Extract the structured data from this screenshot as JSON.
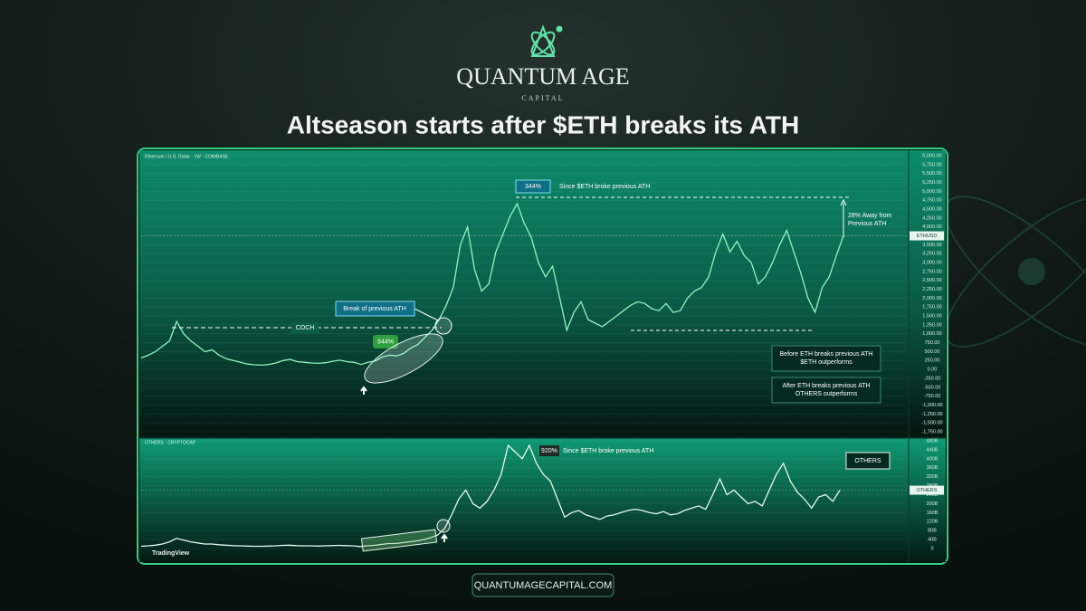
{
  "header": {
    "brand": "QUANTUM AGE",
    "brand_sub": "CAPITAL",
    "title": "Altseason starts after $ETH breaks its ATH"
  },
  "chart_data": [
    {
      "type": "line",
      "title": "Ethereum / U.S. Dollar · 1W · COINBASE",
      "series": [
        {
          "name": "ETHUSD",
          "color": "#8ff5bf",
          "values": [
            320,
            400,
            500,
            650,
            800,
            1350,
            1000,
            800,
            650,
            500,
            550,
            400,
            300,
            250,
            200,
            150,
            130,
            120,
            140,
            180,
            250,
            280,
            220,
            200,
            180,
            170,
            190,
            230,
            260,
            220,
            200,
            140,
            200,
            240,
            350,
            400,
            380,
            450,
            600,
            700,
            900,
            1100,
            1400,
            1800,
            2300,
            3500,
            4000,
            2800,
            2200,
            2400,
            3300,
            3800,
            4300,
            4650,
            4100,
            3700,
            3000,
            2600,
            2900,
            2000,
            1100,
            1600,
            1900,
            1400,
            1300,
            1200,
            1350,
            1500,
            1650,
            1800,
            1900,
            1850,
            1700,
            1650,
            1850,
            1600,
            1650,
            2000,
            2200,
            2300,
            2600,
            3300,
            3800,
            3300,
            3600,
            3200,
            3000,
            2400,
            2600,
            3000,
            3500,
            3900,
            3300,
            2700,
            2000,
            1600,
            2300,
            2600,
            3200,
            3750
          ]
        }
      ],
      "ylim": [
        -1750,
        6000
      ],
      "yticks": [
        {
          "value": -1750,
          "label": "-1,750.00"
        },
        {
          "value": -1500,
          "label": "-1,500.00"
        },
        {
          "value": -1250,
          "label": "-1,250.00"
        },
        {
          "value": -1000,
          "label": "-1,000.00"
        },
        {
          "value": -750,
          "label": "-750.00"
        },
        {
          "value": -500,
          "label": "-500.00"
        },
        {
          "value": -250,
          "label": "-250.00"
        },
        {
          "value": 0,
          "label": "0.00"
        },
        {
          "value": 250,
          "label": "250.00"
        },
        {
          "value": 500,
          "label": "500.00"
        },
        {
          "value": 750,
          "label": "750.00"
        },
        {
          "value": 1000,
          "label": "1,000.00"
        },
        {
          "value": 1250,
          "label": "1,250.00"
        },
        {
          "value": 1500,
          "label": "1,500.00"
        },
        {
          "value": 1750,
          "label": "1,750.00"
        },
        {
          "value": 2000,
          "label": "2,000.00"
        },
        {
          "value": 2250,
          "label": "2,250.00"
        },
        {
          "value": 2500,
          "label": "2,500.00"
        },
        {
          "value": 2750,
          "label": "2,750.00"
        },
        {
          "value": 3000,
          "label": "3,000.00"
        },
        {
          "value": 3250,
          "label": "3,250.00"
        },
        {
          "value": 3500,
          "label": "3,500.00"
        },
        {
          "value": 3750,
          "label": "3,750.00"
        },
        {
          "value": 4000,
          "label": "4,000.00"
        },
        {
          "value": 4250,
          "label": "4,250.00"
        },
        {
          "value": 4500,
          "label": "4,500.00"
        },
        {
          "value": 4750,
          "label": "4,750.00"
        },
        {
          "value": 5000,
          "label": "5,000.00"
        },
        {
          "value": 5250,
          "label": "5,250.00"
        },
        {
          "value": 5500,
          "label": "5,500.00"
        },
        {
          "value": 5750,
          "label": "5,750.00"
        },
        {
          "value": 6000,
          "label": "6,000.00"
        }
      ],
      "grid": true,
      "annotations": {
        "gain": "344%",
        "since": "Since $ETH broke previous ATH",
        "away_1": "28% Away from",
        "away_2": "Previous ATH",
        "break": "Break of previous ATH",
        "coch": "COCH",
        "gain_pre": "944%",
        "before_1": "Before ETH breaks previous ATH",
        "before_2": "$ETH outperforms",
        "after_1": "After ETH breaks previous ATH",
        "after_2": "OTHERS outperforms"
      }
    },
    {
      "type": "line",
      "title": "OTHERS · CRYPTOCAP",
      "series": [
        {
          "name": "OTHERS",
          "color": "#e6f7ef",
          "values": [
            10,
            12,
            15,
            20,
            30,
            45,
            38,
            30,
            25,
            20,
            20,
            17,
            15,
            13,
            12,
            11,
            10,
            10,
            11,
            12,
            14,
            15,
            13,
            12,
            12,
            11,
            12,
            13,
            14,
            13,
            12,
            9,
            12,
            14,
            18,
            22,
            22,
            26,
            30,
            34,
            40,
            48,
            60,
            90,
            150,
            220,
            260,
            200,
            180,
            210,
            260,
            330,
            460,
            430,
            400,
            460,
            380,
            330,
            300,
            220,
            140,
            160,
            170,
            150,
            140,
            130,
            145,
            150,
            160,
            170,
            175,
            170,
            160,
            155,
            165,
            150,
            155,
            170,
            180,
            190,
            175,
            240,
            310,
            240,
            260,
            230,
            200,
            210,
            190,
            260,
            330,
            380,
            300,
            250,
            220,
            180,
            230,
            240,
            210,
            260
          ]
        }
      ],
      "ylim": [
        0,
        480
      ],
      "yticks": [
        0,
        {
          "value": 40,
          "label": "40B"
        },
        {
          "value": 80,
          "label": "80B"
        },
        {
          "value": 120,
          "label": "120B"
        },
        {
          "value": 160,
          "label": "160B"
        },
        {
          "value": 200,
          "label": "200B"
        },
        {
          "value": 240,
          "label": "240B"
        },
        {
          "value": 280,
          "label": "280B"
        },
        {
          "value": 320,
          "label": "320B"
        },
        {
          "value": 360,
          "label": "360B"
        },
        {
          "value": 400,
          "label": "400B"
        },
        {
          "value": 440,
          "label": "440B"
        },
        {
          "value": 480,
          "label": "480B"
        }
      ],
      "grid": true,
      "annotations": {
        "gain": "920%",
        "since": "Since $ETH broke previous ATH",
        "box": "OTHERS"
      }
    }
  ],
  "footer": {
    "platform": "TradingView",
    "url": "QUANTUMAGECAPITAL.COM"
  }
}
